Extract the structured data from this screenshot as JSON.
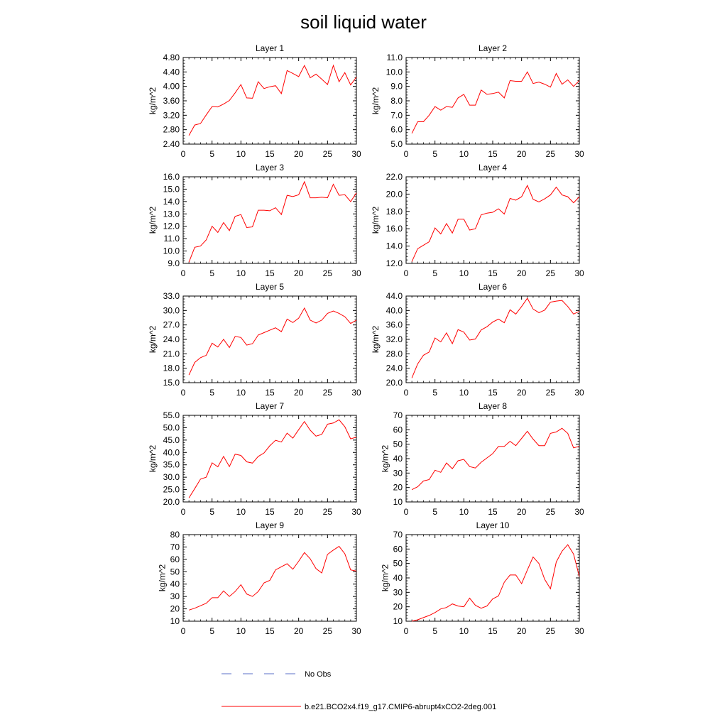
{
  "title": "soil liquid water",
  "colors": {
    "model": "#ff0000",
    "obs": "#5b6fc9",
    "axis": "#000000"
  },
  "legend": {
    "obs_label": "No Obs",
    "model_label": "b.e21.BCO2x4.f19_g17.CMIP6-abrupt4xCO2-2deg.001"
  },
  "chart_data": [
    {
      "type": "line",
      "title": "Layer 1",
      "ylabel": "kg/m^2",
      "xlim": [
        0,
        30
      ],
      "ylim": [
        2.4,
        4.8
      ],
      "xticks": [
        "0",
        "5",
        "10",
        "15",
        "20",
        "25",
        "30"
      ],
      "yticks": [
        "2.40",
        "2.80",
        "3.20",
        "3.60",
        "4.00",
        "4.40",
        "4.80"
      ],
      "series": [
        {
          "x": [
            1,
            2,
            3,
            4,
            5,
            6,
            7,
            8,
            9,
            10,
            11,
            12,
            13,
            14,
            15,
            16,
            17,
            18,
            19,
            20,
            21,
            22,
            23,
            24,
            25,
            26,
            27,
            28,
            29,
            30
          ],
          "values": [
            2.64,
            2.93,
            2.97,
            3.21,
            3.44,
            3.43,
            3.51,
            3.61,
            3.82,
            4.05,
            3.68,
            3.67,
            4.13,
            3.94,
            3.99,
            4.02,
            3.8,
            4.44,
            4.36,
            4.27,
            4.58,
            4.24,
            4.34,
            4.2,
            4.05,
            4.58,
            4.13,
            4.38,
            4.04,
            4.26
          ]
        }
      ]
    },
    {
      "type": "line",
      "title": "Layer 2",
      "ylabel": "kg/m^2",
      "xlim": [
        0,
        30
      ],
      "ylim": [
        5.0,
        11.0
      ],
      "xticks": [
        "0",
        "5",
        "10",
        "15",
        "20",
        "25",
        "30"
      ],
      "yticks": [
        "5.0",
        "6.0",
        "7.0",
        "8.0",
        "9.0",
        "10.0",
        "11.0"
      ],
      "series": [
        {
          "x": [
            1,
            2,
            3,
            4,
            5,
            6,
            7,
            8,
            9,
            10,
            11,
            12,
            13,
            14,
            15,
            16,
            17,
            18,
            19,
            20,
            21,
            22,
            23,
            24,
            25,
            26,
            27,
            28,
            29,
            30
          ],
          "values": [
            5.75,
            6.55,
            6.55,
            7.0,
            7.6,
            7.35,
            7.6,
            7.55,
            8.2,
            8.45,
            7.7,
            7.7,
            8.75,
            8.45,
            8.5,
            8.6,
            8.2,
            9.4,
            9.35,
            9.35,
            10.0,
            9.2,
            9.3,
            9.15,
            8.95,
            9.9,
            9.15,
            9.45,
            9.0,
            9.4
          ]
        }
      ]
    },
    {
      "type": "line",
      "title": "Layer 3",
      "ylabel": "kg/m^2",
      "xlim": [
        0,
        30
      ],
      "ylim": [
        9.0,
        16.0
      ],
      "xticks": [
        "0",
        "5",
        "10",
        "15",
        "20",
        "25",
        "30"
      ],
      "yticks": [
        "9.0",
        "10.0",
        "11.0",
        "12.0",
        "13.0",
        "14.0",
        "15.0",
        "16.0"
      ],
      "series": [
        {
          "x": [
            1,
            2,
            3,
            4,
            5,
            6,
            7,
            8,
            9,
            10,
            11,
            12,
            13,
            14,
            15,
            16,
            17,
            18,
            19,
            20,
            21,
            22,
            23,
            24,
            25,
            26,
            27,
            28,
            29,
            30
          ],
          "values": [
            9.1,
            10.3,
            10.4,
            10.9,
            12.0,
            11.5,
            12.3,
            11.65,
            12.8,
            12.95,
            11.9,
            11.95,
            13.3,
            13.3,
            13.25,
            13.5,
            12.95,
            14.5,
            14.4,
            14.55,
            15.6,
            14.3,
            14.3,
            14.35,
            14.3,
            15.4,
            14.5,
            14.55,
            14.0,
            14.7
          ]
        }
      ]
    },
    {
      "type": "line",
      "title": "Layer 4",
      "ylabel": "kg/m^2",
      "xlim": [
        0,
        30
      ],
      "ylim": [
        12.0,
        22.0
      ],
      "xticks": [
        "0",
        "5",
        "10",
        "15",
        "20",
        "25",
        "30"
      ],
      "yticks": [
        "12.0",
        "14.0",
        "16.0",
        "18.0",
        "20.0",
        "22.0"
      ],
      "series": [
        {
          "x": [
            1,
            2,
            3,
            4,
            5,
            6,
            7,
            8,
            9,
            10,
            11,
            12,
            13,
            14,
            15,
            16,
            17,
            18,
            19,
            20,
            21,
            22,
            23,
            24,
            25,
            26,
            27,
            28,
            29,
            30
          ],
          "values": [
            12.2,
            13.7,
            14.1,
            14.5,
            16.1,
            15.4,
            16.6,
            15.5,
            17.1,
            17.1,
            15.85,
            16.0,
            17.6,
            17.8,
            17.9,
            18.3,
            17.7,
            19.5,
            19.3,
            19.7,
            21.0,
            19.4,
            19.1,
            19.45,
            19.9,
            20.8,
            19.9,
            19.7,
            19.0,
            19.7
          ]
        }
      ]
    },
    {
      "type": "line",
      "title": "Layer 5",
      "ylabel": "kg/m^2",
      "xlim": [
        0,
        30
      ],
      "ylim": [
        15.0,
        33.0
      ],
      "xticks": [
        "0",
        "5",
        "10",
        "15",
        "20",
        "25",
        "30"
      ],
      "yticks": [
        "15.0",
        "18.0",
        "21.0",
        "24.0",
        "27.0",
        "30.0",
        "33.0"
      ],
      "series": [
        {
          "x": [
            1,
            2,
            3,
            4,
            5,
            6,
            7,
            8,
            9,
            10,
            11,
            12,
            13,
            14,
            15,
            16,
            17,
            18,
            19,
            20,
            21,
            22,
            23,
            24,
            25,
            26,
            27,
            28,
            29,
            30
          ],
          "values": [
            16.6,
            19.2,
            20.2,
            20.7,
            23.2,
            22.4,
            24.0,
            22.3,
            24.6,
            24.4,
            22.8,
            23.1,
            24.9,
            25.4,
            25.9,
            26.4,
            25.6,
            28.2,
            27.5,
            28.4,
            30.5,
            28.0,
            27.4,
            28.0,
            29.4,
            29.9,
            29.4,
            28.7,
            27.3,
            28.0
          ]
        }
      ]
    },
    {
      "type": "line",
      "title": "Layer 6",
      "ylabel": "kg/m^2",
      "xlim": [
        0,
        30
      ],
      "ylim": [
        20.0,
        44.0
      ],
      "xticks": [
        "0",
        "5",
        "10",
        "15",
        "20",
        "25",
        "30"
      ],
      "yticks": [
        "20.0",
        "24.0",
        "28.0",
        "32.0",
        "36.0",
        "40.0",
        "44.0"
      ],
      "series": [
        {
          "x": [
            1,
            2,
            3,
            4,
            5,
            6,
            7,
            8,
            9,
            10,
            11,
            12,
            13,
            14,
            15,
            16,
            17,
            18,
            19,
            20,
            21,
            22,
            23,
            24,
            25,
            26,
            27,
            28,
            29,
            30
          ],
          "values": [
            21.3,
            25.2,
            27.6,
            28.5,
            32.4,
            31.3,
            33.8,
            30.8,
            34.7,
            34.0,
            31.8,
            32.1,
            34.6,
            35.5,
            36.8,
            37.6,
            36.6,
            40.2,
            39.0,
            41.1,
            43.4,
            40.4,
            39.4,
            40.1,
            42.3,
            42.6,
            42.8,
            41.1,
            39.0,
            39.8
          ]
        }
      ]
    },
    {
      "type": "line",
      "title": "Layer 7",
      "ylabel": "kg/m^2",
      "xlim": [
        0,
        30
      ],
      "ylim": [
        20.0,
        55.0
      ],
      "xticks": [
        "0",
        "5",
        "10",
        "15",
        "20",
        "25",
        "30"
      ],
      "yticks": [
        "20.0",
        "25.0",
        "30.0",
        "35.0",
        "40.0",
        "45.0",
        "50.0",
        "55.0"
      ],
      "series": [
        {
          "x": [
            1,
            2,
            3,
            4,
            5,
            6,
            7,
            8,
            9,
            10,
            11,
            12,
            13,
            14,
            15,
            16,
            17,
            18,
            19,
            20,
            21,
            22,
            23,
            24,
            25,
            26,
            27,
            28,
            29,
            30
          ],
          "values": [
            21.6,
            25.4,
            29.2,
            30.0,
            35.8,
            34.2,
            38.4,
            34.3,
            39.3,
            38.8,
            36.2,
            35.7,
            38.4,
            39.8,
            42.7,
            44.9,
            44.2,
            47.8,
            45.8,
            49.2,
            52.5,
            49.0,
            46.6,
            47.3,
            51.4,
            51.9,
            53.2,
            50.4,
            45.5,
            46.2
          ]
        }
      ]
    },
    {
      "type": "line",
      "title": "Layer 8",
      "ylabel": "kg/m^2",
      "xlim": [
        0,
        30
      ],
      "ylim": [
        10,
        70
      ],
      "xticks": [
        "0",
        "5",
        "10",
        "15",
        "20",
        "25",
        "30"
      ],
      "yticks": [
        "10",
        "20",
        "30",
        "40",
        "50",
        "60",
        "70"
      ],
      "series": [
        {
          "x": [
            1,
            2,
            3,
            4,
            5,
            6,
            7,
            8,
            9,
            10,
            11,
            12,
            13,
            14,
            15,
            16,
            17,
            18,
            19,
            20,
            21,
            22,
            23,
            24,
            25,
            26,
            27,
            28,
            29,
            30
          ],
          "values": [
            18.5,
            20.5,
            24.5,
            25.5,
            32.0,
            30.5,
            37.0,
            33.0,
            38.5,
            39.5,
            34.5,
            33.5,
            37.5,
            40.5,
            43.5,
            48.5,
            48.5,
            52.0,
            49.0,
            54.0,
            59.0,
            53.5,
            49.0,
            49.0,
            57.5,
            58.5,
            61.0,
            57.5,
            47.5,
            48.5
          ]
        }
      ]
    },
    {
      "type": "line",
      "title": "Layer 9",
      "ylabel": "kg/m^2",
      "xlim": [
        0,
        30
      ],
      "ylim": [
        10,
        80
      ],
      "xticks": [
        "0",
        "5",
        "10",
        "15",
        "20",
        "25",
        "30"
      ],
      "yticks": [
        "10",
        "20",
        "30",
        "40",
        "50",
        "60",
        "70",
        "80"
      ],
      "series": [
        {
          "x": [
            1,
            2,
            3,
            4,
            5,
            6,
            7,
            8,
            9,
            10,
            11,
            12,
            13,
            14,
            15,
            16,
            17,
            18,
            19,
            20,
            21,
            22,
            23,
            24,
            25,
            26,
            27,
            28,
            29,
            30
          ],
          "values": [
            19.0,
            20.5,
            22.5,
            24.5,
            29.0,
            29.0,
            34.5,
            30.0,
            34.0,
            39.5,
            32.0,
            30.0,
            34.0,
            41.0,
            43.0,
            51.5,
            54.0,
            56.5,
            52.0,
            58.5,
            65.5,
            60.5,
            52.5,
            49.0,
            64.0,
            67.5,
            70.5,
            64.5,
            51.5,
            50.5
          ]
        }
      ]
    },
    {
      "type": "line",
      "title": "Layer 10",
      "ylabel": "kg/m^2",
      "xlim": [
        0,
        30
      ],
      "ylim": [
        10,
        70
      ],
      "xticks": [
        "0",
        "5",
        "10",
        "15",
        "20",
        "25",
        "30"
      ],
      "yticks": [
        "10",
        "20",
        "30",
        "40",
        "50",
        "60",
        "70"
      ],
      "series": [
        {
          "x": [
            1,
            2,
            3,
            4,
            5,
            6,
            7,
            8,
            9,
            10,
            11,
            12,
            13,
            14,
            15,
            16,
            17,
            18,
            19,
            20,
            21,
            22,
            23,
            24,
            25,
            26,
            27,
            28,
            29,
            30
          ],
          "values": [
            10.0,
            11.0,
            12.5,
            14.0,
            16.0,
            18.5,
            19.5,
            22.0,
            20.5,
            20.0,
            26.0,
            21.0,
            19.0,
            20.5,
            25.5,
            27.5,
            37.0,
            42.0,
            42.0,
            36.0,
            45.5,
            54.5,
            50.0,
            39.0,
            32.5,
            51.0,
            58.5,
            63.0,
            56.5,
            41.0
          ]
        }
      ]
    }
  ]
}
